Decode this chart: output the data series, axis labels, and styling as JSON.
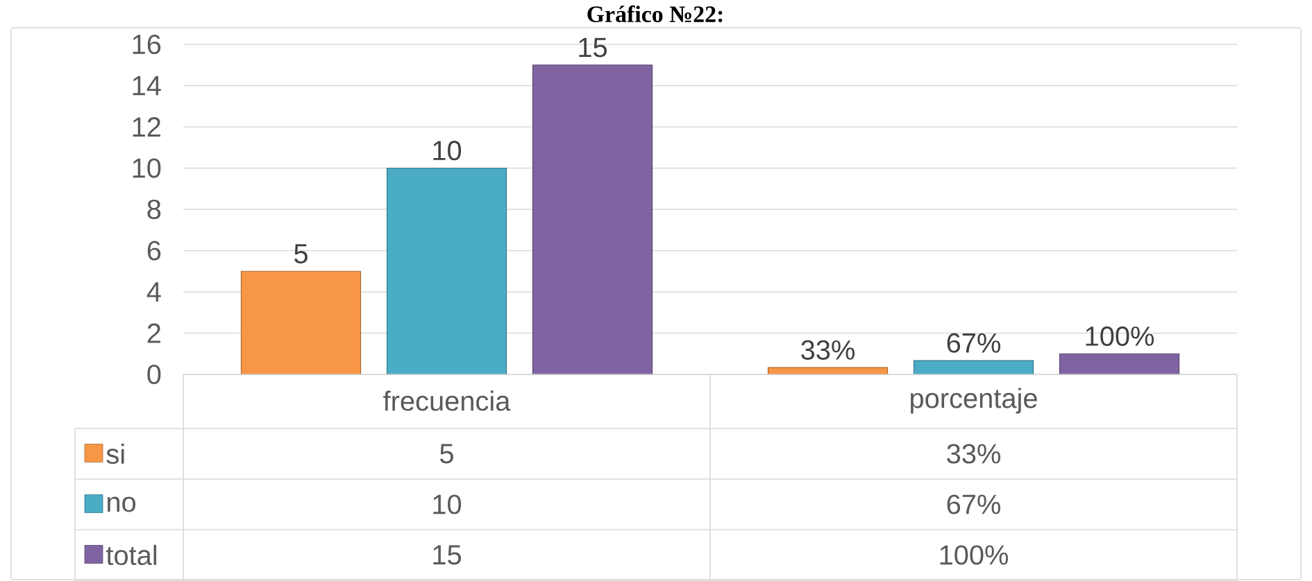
{
  "chart_data": {
    "type": "bar",
    "title": "Gráfico №22:",
    "categories": [
      "frecuencia",
      "porcentaje"
    ],
    "series": [
      {
        "name": "si",
        "color": "#f79646",
        "values": [
          5,
          0.33
        ],
        "value_labels": [
          "5",
          "33%"
        ]
      },
      {
        "name": "no",
        "color": "#4bacc6",
        "values": [
          10,
          0.67
        ],
        "value_labels": [
          "10",
          "67%"
        ]
      },
      {
        "name": "total",
        "color": "#8064a2",
        "values": [
          15,
          1
        ],
        "value_labels": [
          "15",
          "100%"
        ]
      }
    ],
    "ylim": [
      0,
      16
    ],
    "yticks": [
      0,
      2,
      4,
      6,
      8,
      10,
      12,
      14,
      16
    ],
    "grid": "y",
    "legend": "bottom"
  }
}
